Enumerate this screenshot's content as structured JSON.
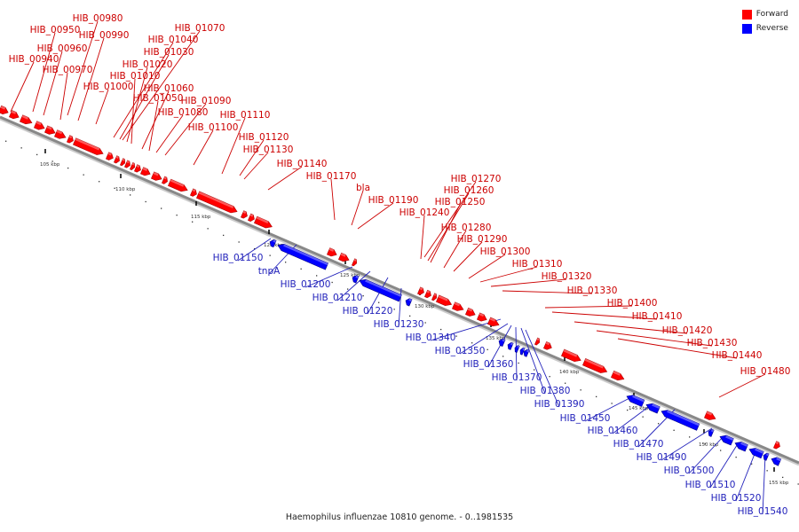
{
  "caption": "Haemophilus influenzae 10810 genome. - 0..1981535",
  "legend": [
    {
      "label": "Forward",
      "color": "#ff0000"
    },
    {
      "label": "Reverse",
      "color": "#0000ff"
    }
  ],
  "colors": {
    "forward": "#ff0000",
    "reverse": "#0000ff",
    "forward_text": "#cc0000",
    "reverse_text": "#2222bb",
    "backbone": "#888888"
  },
  "ticks": [
    "105 kbp",
    "110 kbp",
    "115 kbp",
    "120 kbp",
    "125 kbp",
    "130 kbp",
    "135 kbp",
    "140 kbp",
    "145 kbp",
    "150 kbp",
    "155 kbp"
  ],
  "forward_labels": [
    "HIB_00980",
    "HIB_00950",
    "HIB_00990",
    "HIB_00960",
    "HIB_00940",
    "HIB_00970",
    "HIB_01000",
    "HIB_01070",
    "HIB_01040",
    "HIB_01030",
    "HIB_01020",
    "HIB_01010",
    "HIB_01060",
    "HIB_01050",
    "HIB_01090",
    "HIB_01080",
    "HIB_01110",
    "HIB_01100",
    "HIB_01120",
    "HIB_01130",
    "HIB_01140",
    "HIB_01170",
    "bla",
    "HIB_01190",
    "HIB_01270",
    "HIB_01260",
    "HIB_01250",
    "HIB_01240",
    "HIB_01280",
    "HIB_01290",
    "HIB_01300",
    "HIB_01310",
    "HIB_01320",
    "HIB_01330",
    "HIB_01400",
    "HIB_01410",
    "HIB_01420",
    "HIB_01430",
    "HIB_01440",
    "HIB_01480"
  ],
  "reverse_labels": [
    "HIB_01150",
    "tnpA",
    "HIB_01200",
    "HIB_01210",
    "HIB_01220",
    "HIB_01230",
    "HIB_01340",
    "HIB_01350",
    "HIB_01360",
    "HIB_01370",
    "HIB_01380",
    "HIB_01390",
    "HIB_01450",
    "HIB_01460",
    "HIB_01470",
    "HIB_01490",
    "HIB_01500",
    "HIB_01510",
    "HIB_01520",
    "HIB_01540"
  ]
}
